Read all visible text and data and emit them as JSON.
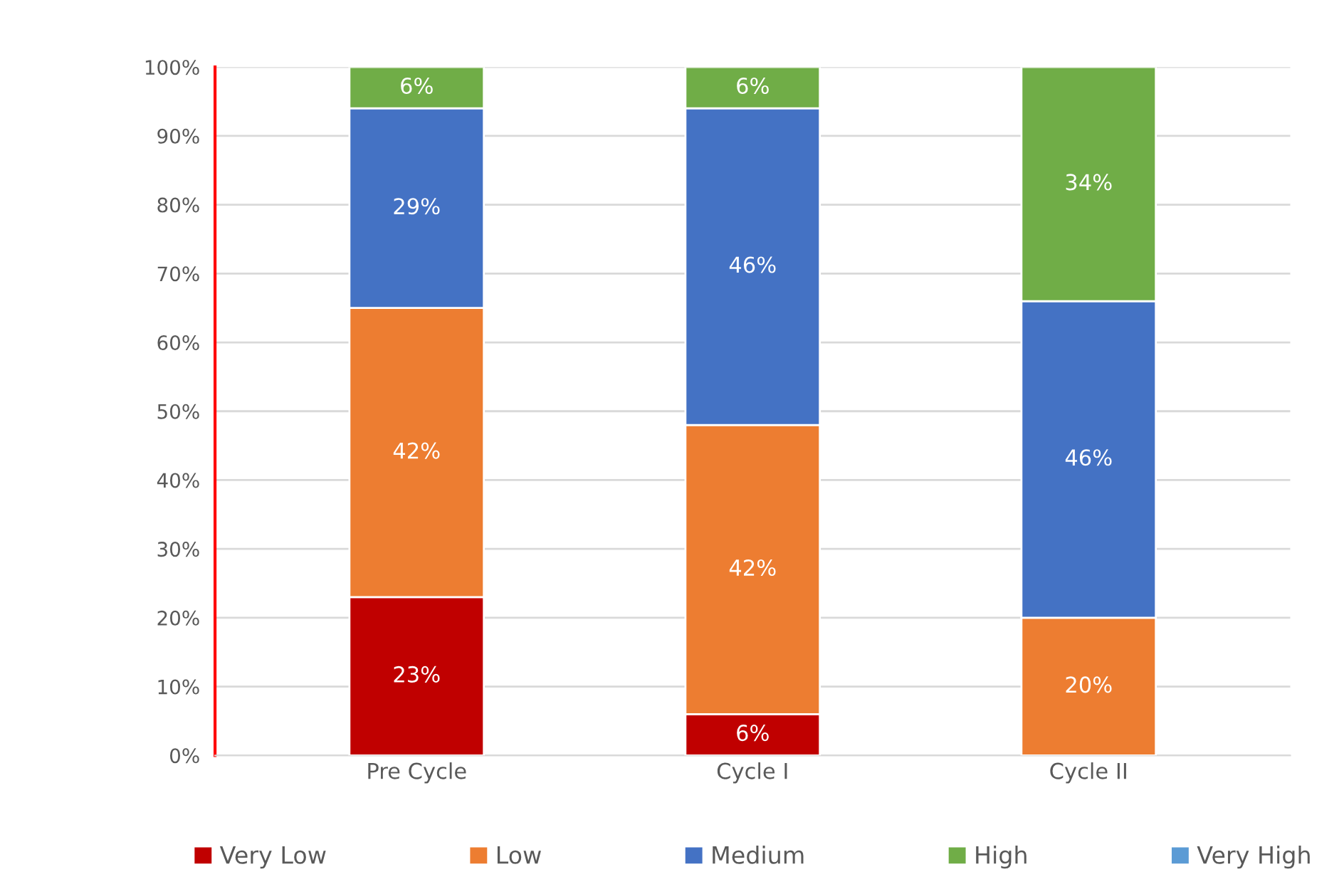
{
  "chart_data": {
    "type": "bar",
    "stacked": true,
    "categories": [
      "Pre Cycle",
      "Cycle I",
      "Cycle II"
    ],
    "series": [
      {
        "name": "Very Low",
        "color": "#c00000",
        "values": [
          23,
          6,
          null
        ],
        "value_labels": [
          "23%",
          "6%",
          null
        ]
      },
      {
        "name": "Low",
        "color": "#ed7d31",
        "values": [
          42,
          42,
          20
        ],
        "value_labels": [
          "42%",
          "42%",
          "20%"
        ]
      },
      {
        "name": "Medium",
        "color": "#4472c4",
        "values": [
          29,
          46,
          46
        ],
        "value_labels": [
          "29%",
          "46%",
          "46%"
        ]
      },
      {
        "name": "High",
        "color": "#70ad47",
        "values": [
          6,
          6,
          34
        ],
        "value_labels": [
          "6%",
          "6%",
          "34%"
        ]
      },
      {
        "name": "Very High",
        "color": "#5b9bd5",
        "values": [
          null,
          null,
          null
        ],
        "value_labels": [
          null,
          null,
          null
        ]
      }
    ],
    "ylim": [
      0,
      100
    ],
    "yticks": [
      {
        "value": 0,
        "label": "0%"
      },
      {
        "value": 10,
        "label": "10%"
      },
      {
        "value": 20,
        "label": "20%"
      },
      {
        "value": 30,
        "label": "30%"
      },
      {
        "value": 40,
        "label": "40%"
      },
      {
        "value": 50,
        "label": "50%"
      },
      {
        "value": 60,
        "label": "60%"
      },
      {
        "value": 70,
        "label": "70%"
      },
      {
        "value": 80,
        "label": "80%"
      },
      {
        "value": 90,
        "label": "90%"
      },
      {
        "value": 100,
        "label": "100%"
      }
    ],
    "grid": "y",
    "legend": "bottom"
  }
}
